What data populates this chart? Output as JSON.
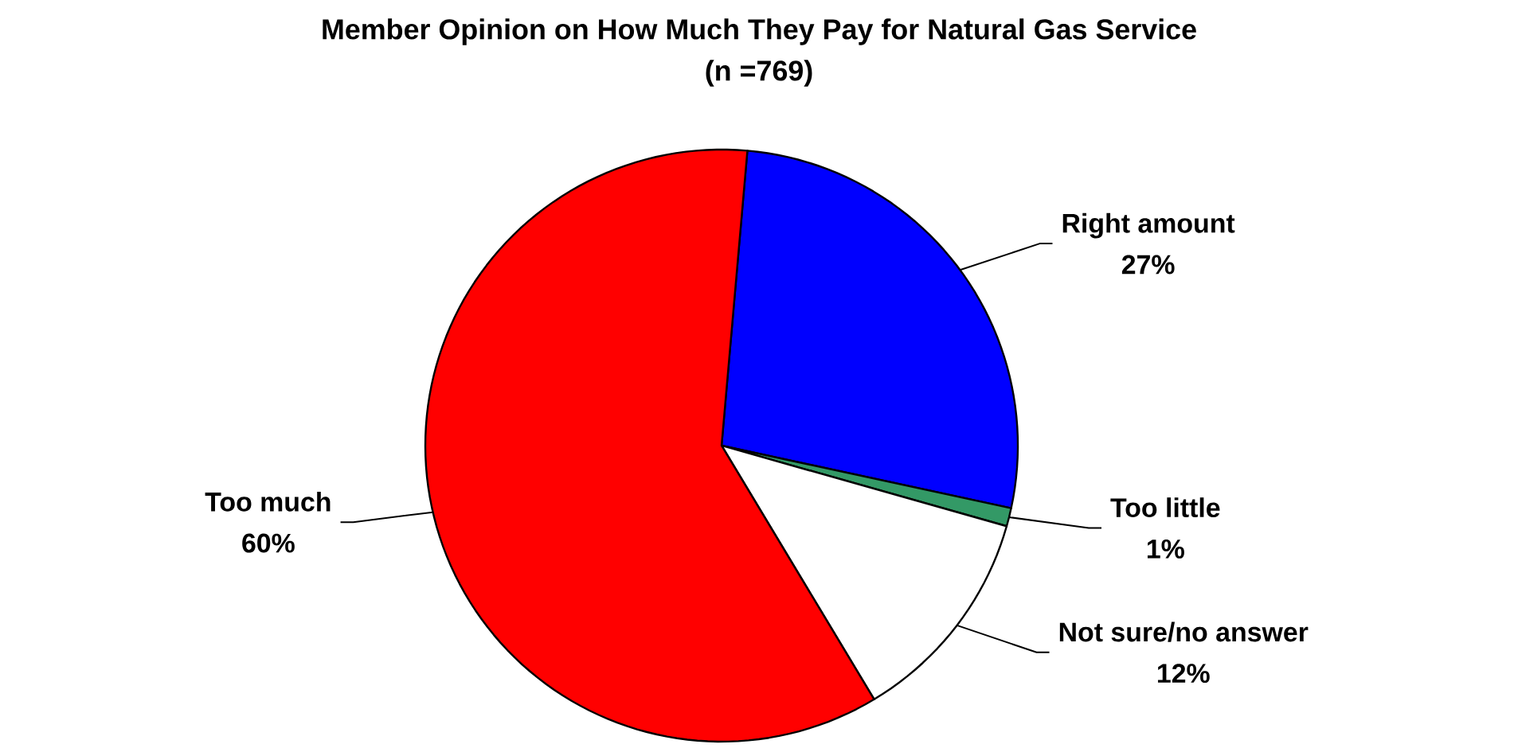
{
  "chart_data": {
    "type": "pie",
    "title": "Member Opinion on How Much They Pay for Natural Gas Service",
    "subtitle": "(n =769)",
    "categories": [
      "Right amount",
      "Too little",
      "Not sure/no answer",
      "Too much"
    ],
    "values": [
      27,
      1,
      12,
      60
    ],
    "colors": [
      "#0000ff",
      "#339966",
      "#ffffff",
      "#ff0000"
    ],
    "value_labels": [
      "27%",
      "1%",
      "12%",
      "60%"
    ]
  }
}
